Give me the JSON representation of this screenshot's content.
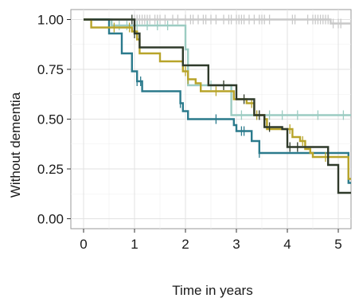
{
  "chart_data": {
    "type": "line",
    "subtype": "kaplan-meier",
    "xlabel": "Time in years",
    "ylabel": "Without dementia",
    "xlim": [
      -0.25,
      5.25
    ],
    "ylim": [
      -0.05,
      1.05
    ],
    "xticks": [
      0,
      1,
      2,
      3,
      4,
      5
    ],
    "yticks": [
      0.0,
      0.25,
      0.5,
      0.75,
      1.0
    ],
    "ytick_labels": [
      "0.00",
      "0.25",
      "0.50",
      "0.75",
      "1.00"
    ],
    "grid": true,
    "legend": "none",
    "series": [
      {
        "color": "#c9c9c9",
        "steps": [
          [
            0,
            1.0
          ],
          [
            4.85,
            0.98
          ],
          [
            5.25,
            0.98
          ]
        ],
        "censor_marks": [
          1.0,
          1.05,
          1.1,
          1.15,
          1.2,
          1.25,
          1.3,
          1.4,
          1.45,
          1.5,
          1.6,
          1.75,
          1.85,
          2.0,
          2.1,
          2.15,
          2.25,
          2.35,
          2.4,
          2.5,
          2.6,
          2.75,
          2.85,
          2.9,
          3.0,
          3.05,
          3.1,
          3.15,
          3.25,
          3.35,
          3.45,
          3.5,
          3.55,
          3.65,
          4.1,
          4.15,
          4.4,
          4.5,
          4.55,
          4.6,
          4.65,
          4.7,
          4.75,
          4.8,
          4.9,
          5.0,
          5.05
        ]
      },
      {
        "color": "#9cccc2",
        "steps": [
          [
            0,
            1.0
          ],
          [
            0.55,
            0.97
          ],
          [
            1.0,
            0.97
          ],
          [
            2.0,
            0.85
          ],
          [
            2.05,
            0.67
          ],
          [
            2.9,
            0.52
          ],
          [
            5.25,
            0.52
          ]
        ],
        "censor_marks": [
          0.7,
          0.85,
          1.05,
          1.25,
          1.45,
          1.65,
          2.5,
          3.1,
          3.4,
          3.65,
          3.9,
          4.2,
          4.6,
          5.1
        ]
      },
      {
        "color": "#2b7a8c",
        "steps": [
          [
            0,
            1.0
          ],
          [
            0.5,
            0.93
          ],
          [
            0.75,
            0.83
          ],
          [
            0.95,
            0.74
          ],
          [
            1.05,
            0.69
          ],
          [
            1.15,
            0.64
          ],
          [
            1.9,
            0.58
          ],
          [
            1.95,
            0.54
          ],
          [
            2.05,
            0.5
          ],
          [
            2.95,
            0.47
          ],
          [
            3.0,
            0.44
          ],
          [
            3.3,
            0.39
          ],
          [
            3.45,
            0.33
          ],
          [
            5.15,
            0.33
          ],
          [
            5.2,
            0.18
          ],
          [
            5.25,
            0.18
          ]
        ],
        "censor_marks": [
          1.05,
          1.12,
          1.9,
          2.6,
          3.1,
          3.15,
          3.45
        ]
      },
      {
        "color": "#b8a42a",
        "steps": [
          [
            0,
            1.0
          ],
          [
            0.15,
            0.96
          ],
          [
            0.95,
            0.94
          ],
          [
            1.05,
            0.9
          ],
          [
            1.1,
            0.83
          ],
          [
            1.5,
            0.79
          ],
          [
            1.95,
            0.74
          ],
          [
            2.05,
            0.7
          ],
          [
            2.2,
            0.68
          ],
          [
            2.3,
            0.64
          ],
          [
            2.95,
            0.6
          ],
          [
            3.2,
            0.58
          ],
          [
            3.35,
            0.52
          ],
          [
            3.55,
            0.5
          ],
          [
            3.6,
            0.45
          ],
          [
            4.1,
            0.41
          ],
          [
            4.25,
            0.39
          ],
          [
            4.35,
            0.35
          ],
          [
            4.45,
            0.33
          ],
          [
            4.5,
            0.31
          ],
          [
            4.85,
            0.31
          ],
          [
            5.2,
            0.2
          ],
          [
            5.25,
            0.2
          ]
        ],
        "censor_marks": [
          0.6,
          0.9,
          2.0,
          2.05,
          2.6,
          3.3,
          3.4,
          4.05,
          4.3,
          4.75
        ]
      },
      {
        "color": "#2f3a2a",
        "steps": [
          [
            0,
            1.0
          ],
          [
            1.0,
            0.93
          ],
          [
            1.1,
            0.86
          ],
          [
            1.95,
            0.77
          ],
          [
            2.45,
            0.67
          ],
          [
            3.0,
            0.6
          ],
          [
            3.35,
            0.52
          ],
          [
            3.55,
            0.46
          ],
          [
            3.9,
            0.45
          ],
          [
            4.0,
            0.36
          ],
          [
            4.8,
            0.27
          ],
          [
            5.0,
            0.13
          ],
          [
            5.25,
            0.13
          ]
        ],
        "censor_marks": [
          0.95,
          1.0,
          2.75,
          3.15,
          3.45,
          3.65,
          4.05,
          4.2
        ]
      }
    ]
  }
}
